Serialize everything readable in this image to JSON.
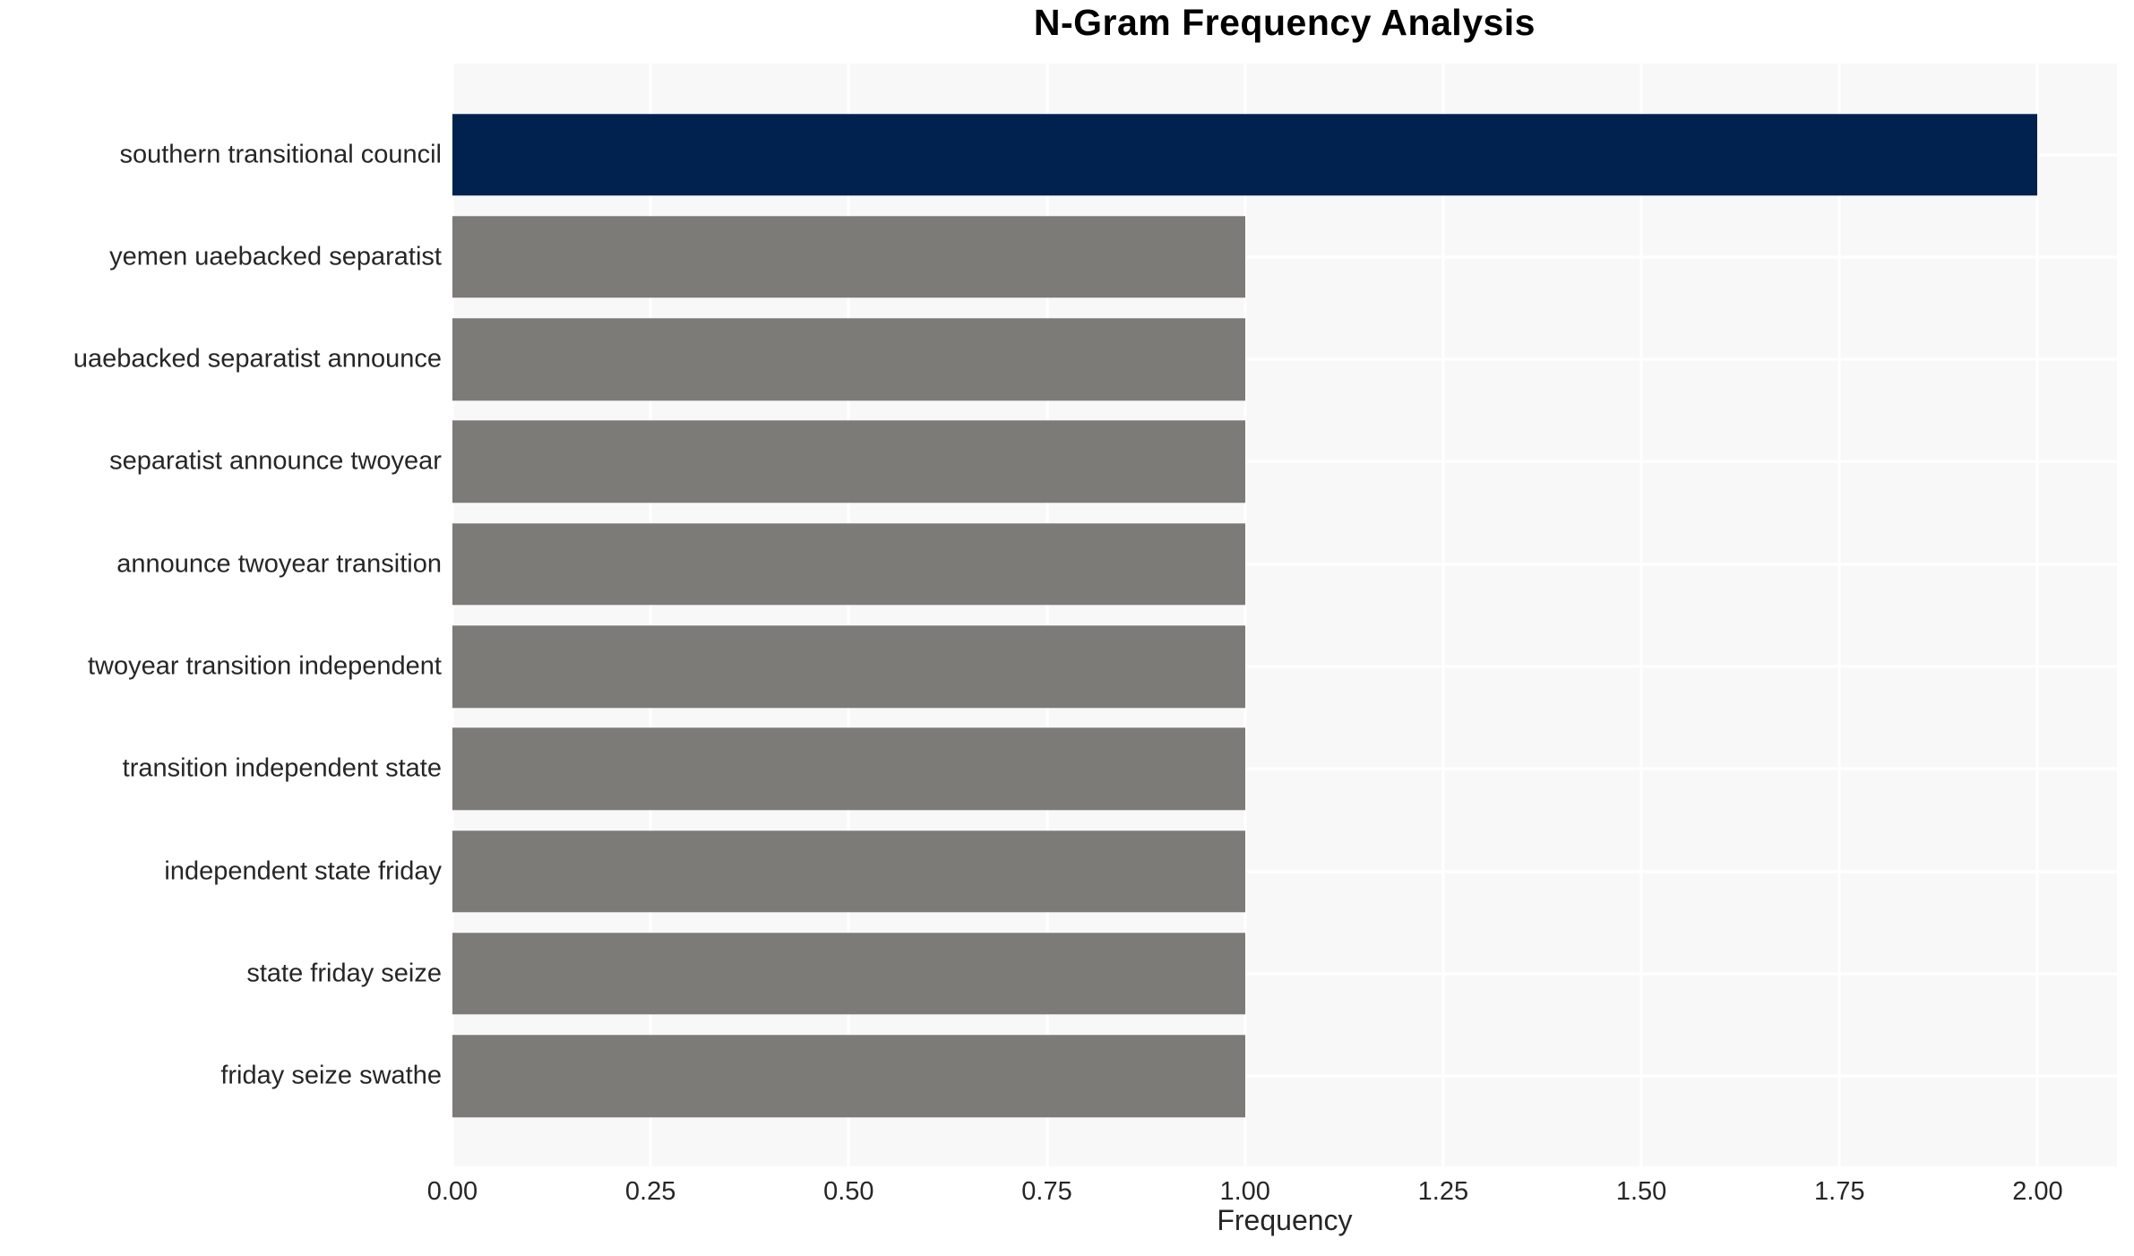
{
  "chart_data": {
    "type": "bar",
    "orientation": "horizontal",
    "title": "N-Gram Frequency Analysis",
    "xlabel": "Frequency",
    "ylabel": "",
    "categories": [
      "southern transitional council",
      "yemen uaebacked separatist",
      "uaebacked separatist announce",
      "separatist announce twoyear",
      "announce twoyear transition",
      "twoyear transition independent",
      "transition independent state",
      "independent state friday",
      "state friday seize",
      "friday seize swathe"
    ],
    "values": [
      2.0,
      1.0,
      1.0,
      1.0,
      1.0,
      1.0,
      1.0,
      1.0,
      1.0,
      1.0
    ],
    "x_ticks": [
      {
        "value": 0.0,
        "label": "0.00"
      },
      {
        "value": 0.25,
        "label": "0.25"
      },
      {
        "value": 0.5,
        "label": "0.50"
      },
      {
        "value": 0.75,
        "label": "0.75"
      },
      {
        "value": 1.0,
        "label": "1.00"
      },
      {
        "value": 1.25,
        "label": "1.25"
      },
      {
        "value": 1.5,
        "label": "1.50"
      },
      {
        "value": 1.75,
        "label": "1.75"
      },
      {
        "value": 2.0,
        "label": "2.00"
      }
    ],
    "xlim": [
      0,
      2.1
    ],
    "grid": "on",
    "legend": "none"
  },
  "style": {
    "figure_bg": "#ffffff",
    "panel_bg": "#f8f8f8",
    "grid_color": "#ffffff",
    "bar_color_max": "#01224e",
    "bar_color_default": "#7c7b77",
    "title_color": "#000000",
    "text_color": "#262626"
  }
}
